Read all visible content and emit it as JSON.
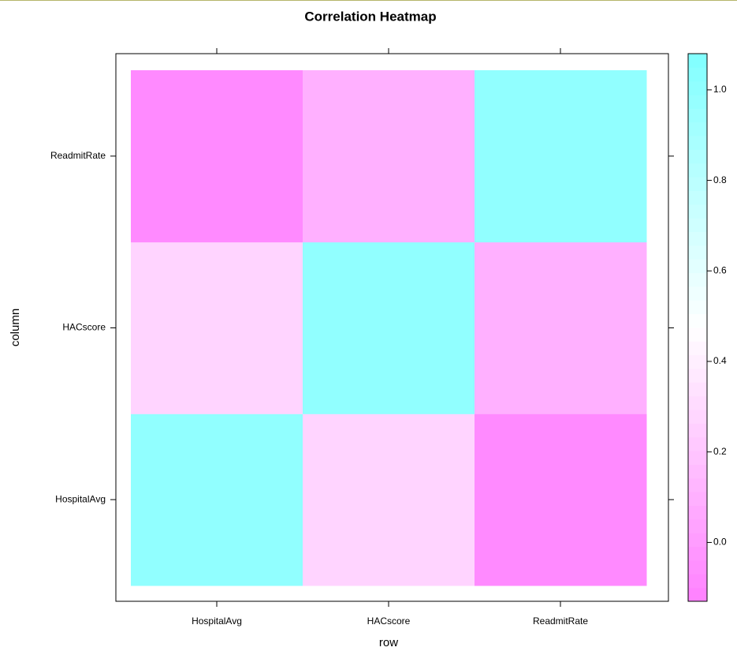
{
  "chart_data": {
    "type": "heatmap",
    "title": "Correlation Heatmap",
    "xlabel": "row",
    "ylabel": "column",
    "x_categories": [
      "HospitalAvg",
      "HACscore",
      "ReadmitRate"
    ],
    "y_categories": [
      "HospitalAvg",
      "HACscore",
      "ReadmitRate"
    ],
    "values": [
      [
        1,
        0.27,
        -0.08
      ],
      [
        0.27,
        1,
        0.1
      ],
      [
        -0.08,
        0.1,
        1
      ]
    ],
    "colormap": [
      "#FF80FF",
      "#FFFFFF",
      "#80FFFF"
    ],
    "zlim": [
      -0.13,
      1.08
    ],
    "zticks": [
      0.0,
      0.2,
      0.4,
      0.6,
      0.8,
      1.0
    ]
  }
}
